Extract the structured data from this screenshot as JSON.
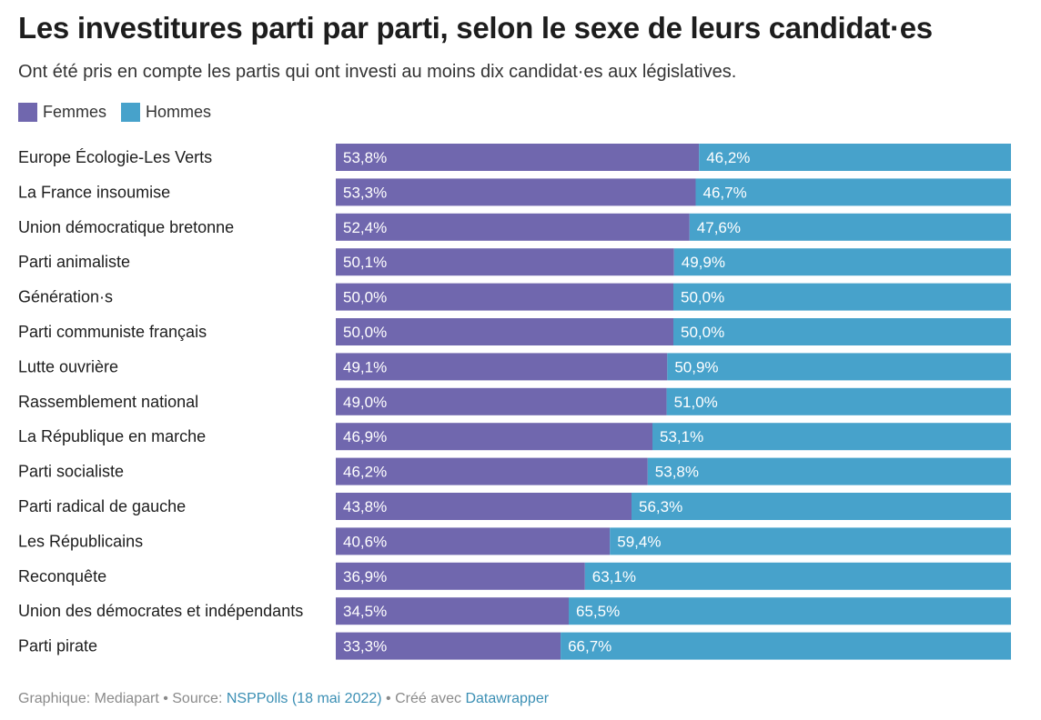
{
  "title": "Les investitures parti par parti, selon le sexe de leurs candidat·es",
  "subtitle": "Ont été pris en compte les partis qui ont investi au moins dix candidat·es aux législatives.",
  "colors": {
    "femmes": "#7067ae",
    "hommes": "#47a2cb"
  },
  "footer": {
    "prefix": "Graphique: Mediapart • Source: ",
    "source_link": "NSPPolls (18 mai 2022)",
    "middle": " • Créé avec ",
    "tool_link": "Datawrapper"
  },
  "chart_data": {
    "type": "bar",
    "orientation": "horizontal",
    "stacked": true,
    "title": "Les investitures parti par parti, selon le sexe de leurs candidat·es",
    "subtitle": "Ont été pris en compte les partis qui ont investi au moins dix candidat·es aux législatives.",
    "legend": "top-left",
    "xlim": [
      0,
      100
    ],
    "categories": [
      "Europe Écologie-Les Verts",
      "La France insoumise",
      "Union démocratique bretonne",
      "Parti animaliste",
      "Génération·s",
      "Parti communiste français",
      "Lutte ouvrière",
      "Rassemblement national",
      "La République en marche",
      "Parti socialiste",
      "Parti radical de gauche",
      "Les Républicains",
      "Reconquête",
      "Union des démocrates et indépendants",
      "Parti pirate"
    ],
    "series": [
      {
        "name": "Femmes",
        "values": [
          53.8,
          53.3,
          52.4,
          50.1,
          50.0,
          50.0,
          49.1,
          49.0,
          46.9,
          46.2,
          43.8,
          40.6,
          36.9,
          34.5,
          33.3
        ],
        "labels": [
          "53,8%",
          "53,3%",
          "52,4%",
          "50,1%",
          "50,0%",
          "50,0%",
          "49,1%",
          "49,0%",
          "46,9%",
          "46,2%",
          "43,8%",
          "40,6%",
          "36,9%",
          "34,5%",
          "33,3%"
        ]
      },
      {
        "name": "Hommes",
        "values": [
          46.2,
          46.7,
          47.6,
          49.9,
          50.0,
          50.0,
          50.9,
          51.0,
          53.1,
          53.8,
          56.3,
          59.4,
          63.1,
          65.5,
          66.7
        ],
        "labels": [
          "46,2%",
          "46,7%",
          "47,6%",
          "49,9%",
          "50,0%",
          "50,0%",
          "50,9%",
          "51,0%",
          "53,1%",
          "53,8%",
          "56,3%",
          "59,4%",
          "63,1%",
          "65,5%",
          "66,7%"
        ]
      }
    ]
  }
}
